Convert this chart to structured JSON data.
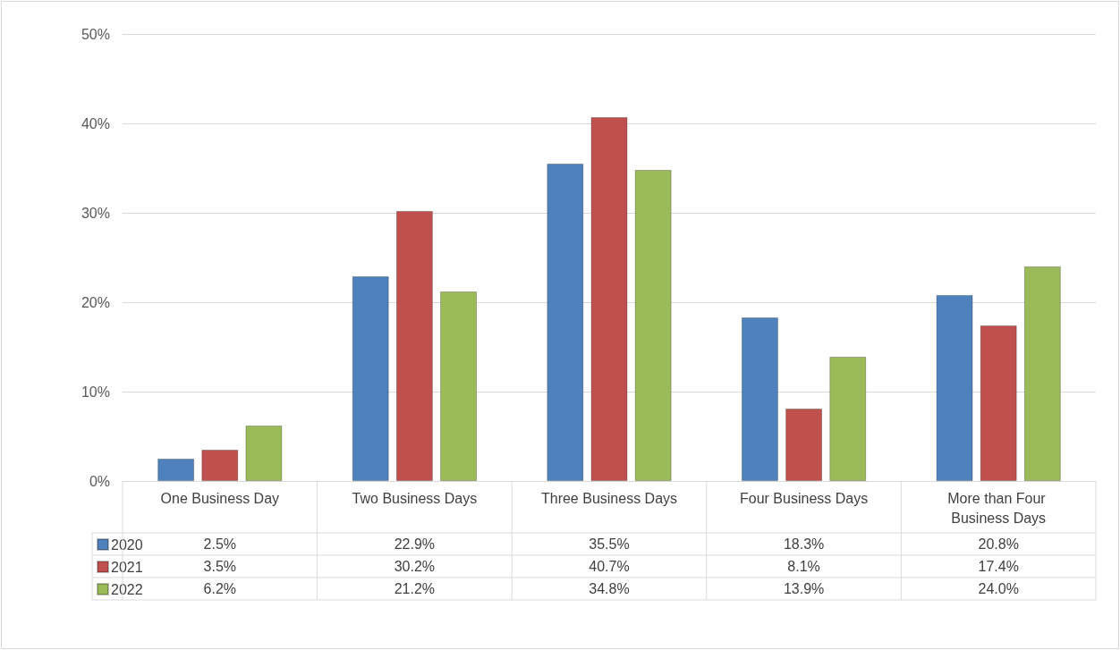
{
  "chart_data": {
    "type": "bar",
    "categories": [
      "One Business Day",
      "Two Business Days",
      "Three Business Days",
      "Four Business Days",
      "More than Four Business Days"
    ],
    "series": [
      {
        "name": "2020",
        "color": "#4f81bd",
        "values": [
          2.5,
          22.9,
          35.5,
          18.3,
          20.8
        ],
        "value_labels": [
          "2.5%",
          "22.9%",
          "35.5%",
          "18.3%",
          "20.8%"
        ]
      },
      {
        "name": "2021",
        "color": "#c0504d",
        "values": [
          3.5,
          30.2,
          40.7,
          8.1,
          17.4
        ],
        "value_labels": [
          "3.5%",
          "30.2%",
          "40.7%",
          "8.1%",
          "17.4%"
        ]
      },
      {
        "name": "2022",
        "color": "#9bbb59",
        "values": [
          6.2,
          21.2,
          34.8,
          13.9,
          24.0
        ],
        "value_labels": [
          "6.2%",
          "21.2%",
          "34.8%",
          "13.9%",
          "24.0%"
        ]
      }
    ],
    "ylim": [
      0,
      50
    ],
    "yticks": [
      {
        "value": 0,
        "label": "0%"
      },
      {
        "value": 10,
        "label": "10%"
      },
      {
        "value": 20,
        "label": "20%"
      },
      {
        "value": 30,
        "label": "30%"
      },
      {
        "value": 40,
        "label": "40%"
      },
      {
        "value": 50,
        "label": "50%"
      }
    ],
    "grid": "y",
    "legend": "bottom left"
  }
}
